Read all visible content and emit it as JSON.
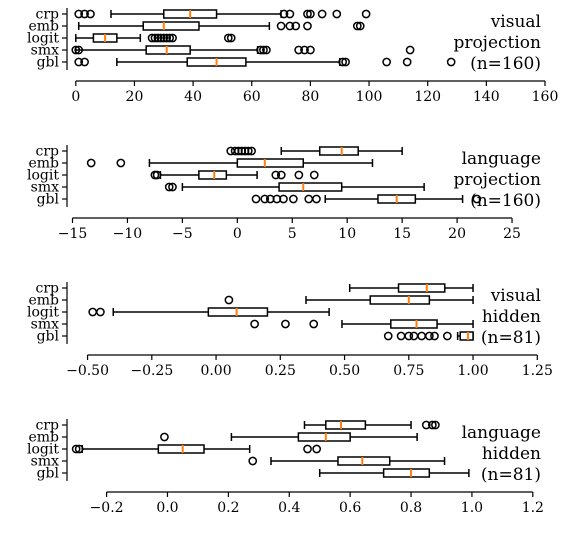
{
  "chart_data": [
    {
      "type": "boxplot",
      "orientation": "horizontal",
      "annotation": [
        "visual",
        "projection",
        "(n=160)"
      ],
      "categories": [
        "crp",
        "emb",
        "logit",
        "smx",
        "gbl"
      ],
      "xlim": [
        -3,
        160
      ],
      "xticks": [
        0,
        20,
        40,
        60,
        80,
        100,
        120,
        140,
        160
      ],
      "xtick_labels": [
        "0",
        "20",
        "40",
        "60",
        "80",
        "100",
        "120",
        "140",
        "160"
      ],
      "boxes": [
        {
          "name": "crp",
          "whislo": 12,
          "q1": 30,
          "med": 39,
          "q3": 48,
          "whishi": 70,
          "fliers": [
            1,
            3,
            5,
            71,
            73,
            79,
            80,
            84,
            89,
            99
          ]
        },
        {
          "name": "emb",
          "whislo": 1,
          "q1": 23,
          "med": 30,
          "q3": 42,
          "whishi": 66,
          "fliers": [
            70,
            73,
            75,
            79,
            96,
            97
          ]
        },
        {
          "name": "logit",
          "whislo": 0,
          "q1": 6,
          "med": 10,
          "q3": 14,
          "whishi": 22,
          "fliers": [
            26,
            27,
            28,
            29,
            30,
            31,
            32,
            33,
            52,
            53
          ]
        },
        {
          "name": "smx",
          "whislo": 0,
          "q1": 24,
          "med": 31,
          "q3": 39,
          "whishi": 62,
          "fliers": [
            0,
            1,
            63,
            64,
            65,
            76,
            78,
            80,
            114
          ]
        },
        {
          "name": "gbl",
          "whislo": 14,
          "q1": 38,
          "med": 48,
          "q3": 58,
          "whishi": 90,
          "fliers": [
            1,
            3,
            91,
            92,
            106,
            113,
            128
          ]
        }
      ]
    },
    {
      "type": "boxplot",
      "orientation": "horizontal",
      "annotation": [
        "language",
        "projection",
        "(n=160)"
      ],
      "categories": [
        "crp",
        "emb",
        "logit",
        "smx",
        "gbl"
      ],
      "xlim": [
        -15.5,
        28
      ],
      "xticks": [
        -15,
        -10,
        -5,
        0,
        5,
        10,
        15,
        20,
        25
      ],
      "xtick_labels": [
        "−15",
        "−10",
        "−5",
        "0",
        "5",
        "10",
        "15",
        "20",
        "25"
      ],
      "boxes": [
        {
          "name": "crp",
          "whislo": 4,
          "q1": 7.5,
          "med": 9.5,
          "q3": 11,
          "whishi": 15,
          "fliers": [
            -0.6,
            -0.2,
            0.1,
            0.4,
            0.7,
            1.0,
            1.3
          ]
        },
        {
          "name": "emb",
          "whislo": -8,
          "q1": 0,
          "med": 2.5,
          "q3": 6,
          "whishi": 12.3,
          "fliers": [
            -13.3,
            -10.6
          ]
        },
        {
          "name": "logit",
          "whislo": -7,
          "q1": -3.5,
          "med": -2.1,
          "q3": -1,
          "whishi": 1.8,
          "fliers": [
            -7.5,
            -7.3,
            3.5,
            4.0,
            5.6,
            7.0
          ]
        },
        {
          "name": "smx",
          "whislo": -5,
          "q1": 3.8,
          "med": 6,
          "q3": 9.5,
          "whishi": 17,
          "fliers": [
            -6.2,
            -5.9
          ]
        },
        {
          "name": "gbl",
          "whislo": 8,
          "q1": 12.8,
          "med": 14.5,
          "q3": 16.2,
          "whishi": 20.5,
          "fliers": [
            1.7,
            2.5,
            3.0,
            3.6,
            4.2,
            5.1,
            6.5,
            7.2,
            21.8
          ]
        }
      ]
    },
    {
      "type": "boxplot",
      "orientation": "horizontal",
      "annotation": [
        "visual",
        "hidden",
        "(n=81)"
      ],
      "categories": [
        "crp",
        "emb",
        "logit",
        "smx",
        "gbl"
      ],
      "xlim": [
        -0.58,
        1.28
      ],
      "xticks": [
        -0.5,
        -0.25,
        0.0,
        0.25,
        0.5,
        0.75,
        1.0,
        1.25
      ],
      "xtick_labels": [
        "−0.50",
        "−0.25",
        "0.00",
        "0.25",
        "0.50",
        "0.75",
        "1.00",
        "1.25"
      ],
      "boxes": [
        {
          "name": "crp",
          "whislo": 0.52,
          "q1": 0.71,
          "med": 0.82,
          "q3": 0.89,
          "whishi": 1.0,
          "fliers": []
        },
        {
          "name": "emb",
          "whislo": 0.35,
          "q1": 0.6,
          "med": 0.75,
          "q3": 0.83,
          "whishi": 1.0,
          "fliers": [
            0.05
          ]
        },
        {
          "name": "logit",
          "whislo": -0.4,
          "q1": -0.03,
          "med": 0.08,
          "q3": 0.2,
          "whishi": 0.44,
          "fliers": [
            -0.48,
            -0.45
          ]
        },
        {
          "name": "smx",
          "whislo": 0.49,
          "q1": 0.68,
          "med": 0.78,
          "q3": 0.86,
          "whishi": 1.0,
          "fliers": [
            0.15,
            0.27,
            0.38
          ]
        },
        {
          "name": "gbl",
          "whislo": 0.94,
          "q1": 0.95,
          "med": 0.98,
          "q3": 1.0,
          "whishi": 1.0,
          "fliers": [
            0.67,
            0.72,
            0.75,
            0.77,
            0.8,
            0.83,
            0.85,
            0.9
          ]
        }
      ]
    },
    {
      "type": "boxplot",
      "orientation": "horizontal",
      "annotation": [
        "language",
        "hidden",
        "(n=81)"
      ],
      "categories": [
        "crp",
        "emb",
        "logit",
        "smx",
        "gbl"
      ],
      "xlim": [
        -0.33,
        1.24
      ],
      "xticks": [
        -0.2,
        0.0,
        0.2,
        0.4,
        0.6,
        0.8,
        1.0,
        1.2
      ],
      "xtick_labels": [
        "−0.2",
        "0.0",
        "0.2",
        "0.4",
        "0.6",
        "0.8",
        "1.0",
        "1.2"
      ],
      "boxes": [
        {
          "name": "crp",
          "whislo": 0.45,
          "q1": 0.52,
          "med": 0.57,
          "q3": 0.65,
          "whishi": 0.8,
          "fliers": [
            0.85,
            0.87,
            0.88
          ]
        },
        {
          "name": "emb",
          "whislo": 0.21,
          "q1": 0.43,
          "med": 0.52,
          "q3": 0.6,
          "whishi": 0.82,
          "fliers": [
            -0.01
          ]
        },
        {
          "name": "logit",
          "whislo": -0.28,
          "q1": -0.03,
          "med": 0.05,
          "q3": 0.12,
          "whishi": 0.27,
          "fliers": [
            -0.3,
            -0.29,
            0.46,
            0.49
          ]
        },
        {
          "name": "smx",
          "whislo": 0.34,
          "q1": 0.56,
          "med": 0.64,
          "q3": 0.73,
          "whishi": 0.91,
          "fliers": [
            0.28
          ]
        },
        {
          "name": "gbl",
          "whislo": 0.5,
          "q1": 0.71,
          "med": 0.8,
          "q3": 0.86,
          "whishi": 0.99,
          "fliers": []
        }
      ]
    }
  ],
  "style": {
    "median_color": "#ff7f0e",
    "line_color": "#000000",
    "background": "#ffffff"
  }
}
